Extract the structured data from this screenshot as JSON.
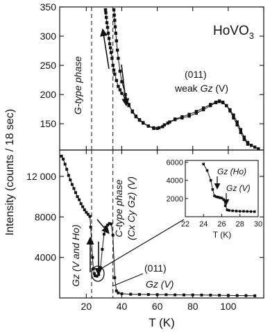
{
  "chart_data": [
    {
      "panel": "top",
      "type": "line",
      "title": "HoVO",
      "title_sub": "3",
      "ylim": [
        105,
        350
      ],
      "xlim": [
        5,
        120
      ],
      "yticks": [
        150,
        200,
        250,
        300,
        350
      ],
      "dashed_lines_x": [
        23,
        35
      ],
      "annotations": {
        "phase": "G-type phase",
        "reflection": "(011)",
        "weak_prefix": "weak",
        "weak_gz": "Gz",
        "weak_suffix": "(V)"
      },
      "series": [
        {
          "name": "warming",
          "x": [
            30.8,
            31,
            31.3,
            31.6,
            32,
            32.4,
            32.8,
            33.2,
            33.6,
            34,
            34.5,
            35,
            35.5,
            36,
            37,
            38,
            39,
            40,
            42,
            44,
            46,
            48,
            50,
            52,
            55,
            58,
            60,
            63,
            66,
            70,
            74,
            78,
            82,
            86,
            90,
            93,
            95,
            97,
            99,
            101,
            103,
            105,
            107,
            109,
            111,
            113,
            115,
            117
          ],
          "y": [
            345,
            340,
            332,
            323,
            315,
            305,
            296,
            287,
            280,
            272,
            262,
            250,
            242,
            235,
            224,
            214,
            208,
            202,
            193,
            181,
            172,
            163,
            157,
            152,
            146,
            143,
            142,
            145,
            151,
            157,
            160,
            163,
            168,
            174,
            181,
            186,
            188,
            186,
            181,
            174,
            165,
            153,
            140,
            127,
            118,
            113,
            110,
            107
          ]
        },
        {
          "name": "cooling",
          "x": [
            35.5,
            35.8,
            36,
            36.3,
            36.6,
            37,
            37.5,
            38,
            39,
            40,
            42,
            44,
            46,
            48,
            50,
            52,
            55,
            58,
            61,
            64,
            67,
            70,
            74,
            78,
            82,
            86,
            90,
            93,
            95,
            97,
            99,
            101,
            103,
            105,
            107,
            109,
            111
          ],
          "y": [
            345,
            336,
            327,
            316,
            305,
            292,
            276,
            262,
            240,
            222,
            200,
            183,
            170,
            162,
            156,
            151,
            146,
            142,
            143,
            148,
            153,
            158,
            162,
            166,
            171,
            177,
            183,
            187,
            189,
            187,
            181,
            172,
            160,
            148,
            135,
            123,
            115
          ]
        }
      ]
    },
    {
      "panel": "bottom",
      "type": "line",
      "xlabel": "T (K)",
      "ylabel": "Intensity (counts / 18 sec)",
      "xlim": [
        5,
        120
      ],
      "ylim": [
        0,
        14600
      ],
      "xticks": [
        20,
        40,
        60,
        80,
        100,
        120
      ],
      "yticks": [
        4000,
        8000,
        12000
      ],
      "ytick_labels": [
        "4000",
        "8000",
        "12 000"
      ],
      "dashed_lines_x": [
        23,
        35
      ],
      "annotations": {
        "phase_line1": "C-type phase",
        "phase_line2": "(Cx Cy Gz) (V)",
        "gz_both": "Gz (V and Ho)",
        "reflection": "(011)",
        "gz_v": "Gz (V)"
      },
      "series": [
        {
          "name": "cooling",
          "x": [
            6,
            7,
            8,
            9,
            10,
            11,
            12,
            13,
            14,
            15,
            16,
            17,
            18,
            19,
            20,
            21,
            22,
            22.5,
            23,
            23.5,
            24,
            24.5,
            25
          ],
          "y": [
            14000,
            13700,
            13200,
            12700,
            12100,
            11650,
            11200,
            10800,
            10400,
            10000,
            9700,
            9300,
            9000,
            8700,
            8450,
            8250,
            8050,
            7000,
            5500,
            4000,
            2900,
            2400,
            2200
          ]
        },
        {
          "name": "warming",
          "x": [
            25,
            26,
            27,
            28,
            29,
            30,
            31,
            32,
            33,
            34,
            35,
            36,
            37,
            38,
            40,
            45,
            50,
            55,
            60,
            65,
            70,
            75,
            80,
            85,
            90,
            95,
            100,
            105,
            110,
            115
          ],
          "y": [
            2200,
            2150,
            2300,
            3000,
            4800,
            6300,
            7000,
            7200,
            7350,
            7300,
            6200,
            2000,
            700,
            500,
            420,
            370,
            350,
            340,
            330,
            320,
            310,
            300,
            300,
            290,
            280,
            270,
            250,
            240,
            230,
            220
          ]
        }
      ]
    },
    {
      "panel": "inset",
      "type": "line",
      "xlabel": "T (K)",
      "xlim": [
        22,
        30
      ],
      "ylim": [
        0,
        6200
      ],
      "xticks": [
        22,
        24,
        26,
        28,
        30
      ],
      "yticks": [
        2000,
        4000,
        6000
      ],
      "annotations": {
        "gz_ho": "Gz (Ho)",
        "gz_v": "Gz (V)"
      },
      "series": [
        {
          "name": "inset",
          "x": [
            24.0,
            24.4,
            24.8,
            25.0,
            25.2,
            25.4,
            25.6,
            25.8,
            26.0,
            26.2,
            26.4,
            26.6,
            26.8,
            27.2,
            27.6,
            28.0,
            28.4,
            28.8,
            29.2,
            29.6
          ],
          "y": [
            5800,
            5100,
            4000,
            3000,
            2300,
            2200,
            2150,
            2100,
            2050,
            1900,
            1200,
            750,
            700,
            650,
            620,
            600,
            600,
            580,
            570,
            560
          ]
        }
      ]
    }
  ]
}
